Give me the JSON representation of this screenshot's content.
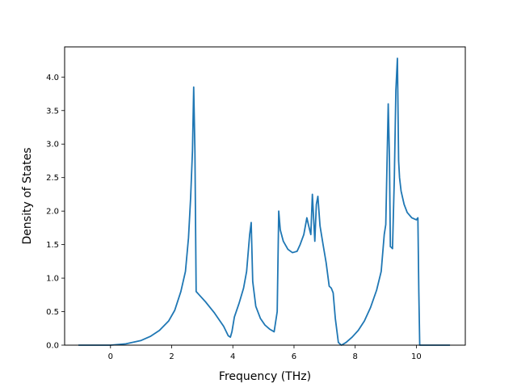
{
  "chart_data": {
    "type": "line",
    "title": "",
    "xlabel": "Frequency (THz)",
    "ylabel": "Density of States",
    "xlim": [
      -1.5,
      11.6
    ],
    "ylim": [
      0.0,
      4.45
    ],
    "x_ticks": [
      0,
      2,
      4,
      6,
      8,
      10
    ],
    "x_tick_labels": [
      "0",
      "2",
      "4",
      "6",
      "8",
      "10"
    ],
    "y_ticks": [
      0.0,
      0.5,
      1.0,
      1.5,
      2.0,
      2.5,
      3.0,
      3.5,
      4.0
    ],
    "y_tick_labels": [
      "0.0",
      "0.5",
      "1.0",
      "1.5",
      "2.0",
      "2.5",
      "3.0",
      "3.5",
      "4.0"
    ],
    "grid": false,
    "legend": "none",
    "line_color": "#1f77b4",
    "series": [
      {
        "x": [
          -1.05,
          -0.5,
          0.0,
          0.5,
          1.0,
          1.3,
          1.6,
          1.9,
          2.1,
          2.3,
          2.45,
          2.55,
          2.62,
          2.68,
          2.72,
          2.76,
          2.8,
          2.9,
          3.1,
          3.4,
          3.7,
          3.85,
          3.92,
          3.97,
          4.05,
          4.2,
          4.35,
          4.45,
          4.55,
          4.6,
          4.65,
          4.75,
          4.9,
          5.05,
          5.2,
          5.35,
          5.45,
          5.5,
          5.55,
          5.65,
          5.8,
          5.95,
          6.1,
          6.2,
          6.32,
          6.42,
          6.48,
          6.55,
          6.6,
          6.68,
          6.73,
          6.78,
          6.85,
          6.95,
          7.05,
          7.15,
          7.22,
          7.28,
          7.35,
          7.45,
          7.55,
          7.7,
          7.9,
          8.1,
          8.3,
          8.5,
          8.7,
          8.85,
          8.95,
          9.0,
          9.08,
          9.12,
          9.15,
          9.18,
          9.22,
          9.28,
          9.33,
          9.38,
          9.42,
          9.45,
          9.5,
          9.6,
          9.7,
          9.85,
          10.0,
          10.05,
          10.08,
          10.11,
          10.3,
          11.1
        ],
        "y": [
          0.0,
          0.0,
          0.0,
          0.02,
          0.07,
          0.13,
          0.22,
          0.36,
          0.52,
          0.8,
          1.1,
          1.6,
          2.2,
          2.9,
          3.85,
          2.9,
          0.8,
          0.75,
          0.65,
          0.48,
          0.28,
          0.14,
          0.12,
          0.2,
          0.42,
          0.62,
          0.85,
          1.1,
          1.65,
          1.83,
          0.95,
          0.58,
          0.4,
          0.3,
          0.24,
          0.2,
          0.5,
          2.0,
          1.72,
          1.55,
          1.43,
          1.38,
          1.4,
          1.5,
          1.65,
          1.9,
          1.78,
          1.65,
          2.25,
          1.55,
          2.1,
          2.22,
          1.78,
          1.5,
          1.23,
          0.88,
          0.85,
          0.78,
          0.4,
          0.04,
          0.0,
          0.04,
          0.12,
          0.22,
          0.36,
          0.56,
          0.82,
          1.1,
          1.65,
          1.8,
          3.6,
          2.8,
          1.47,
          1.46,
          1.44,
          2.5,
          3.8,
          4.28,
          2.75,
          2.5,
          2.3,
          2.1,
          1.98,
          1.9,
          1.87,
          1.9,
          0.8,
          0.0,
          0.0,
          0.0
        ]
      }
    ]
  }
}
